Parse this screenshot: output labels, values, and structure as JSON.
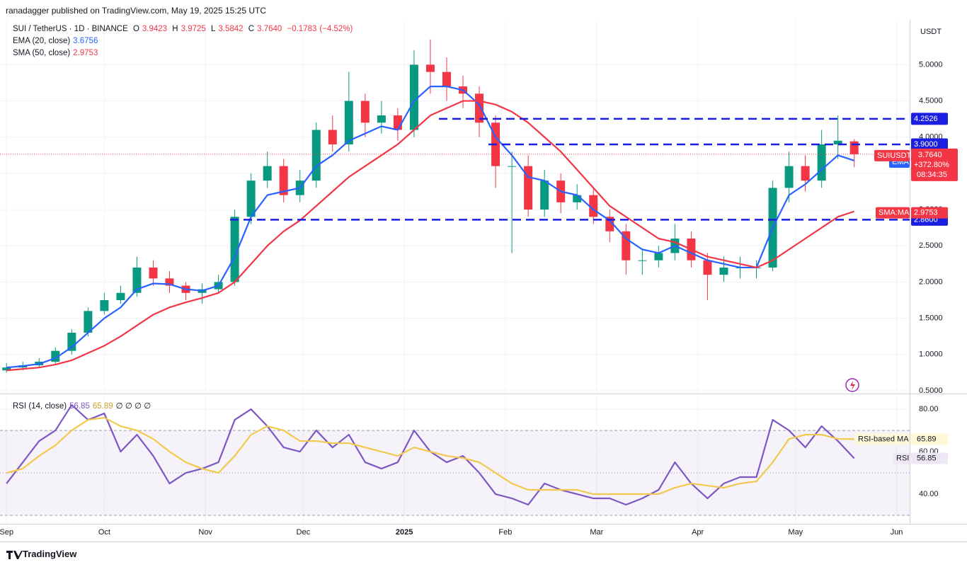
{
  "header": {
    "publisher": "ranadagger published on TradingView.com, May 19, 2025 15:25 UTC",
    "brand": "TradingView"
  },
  "chart_data": [
    {
      "type": "candlestick",
      "title": "SUI / TetherUS · 1D · BINANCE",
      "legend": {
        "open_label": "O",
        "open": 3.9423,
        "high_label": "H",
        "high": 3.9725,
        "low_label": "L",
        "low": 3.5842,
        "close_label": "C",
        "close": {
          "value": 3.764,
          "label": "3.7640"
        },
        "change": {
          "value": -0.1783,
          "label": "−0.1783"
        },
        "change_pct": {
          "value": -4.52,
          "label": "(−4.52%)"
        }
      },
      "currency": "USDT",
      "x": [
        0,
        5,
        10,
        15,
        20,
        25,
        30,
        35,
        40,
        45,
        50,
        55,
        60,
        65,
        70,
        75,
        80,
        85,
        90,
        95,
        100,
        105,
        110,
        115,
        120,
        125,
        130,
        135,
        140,
        145,
        150,
        155,
        160,
        165,
        170,
        175,
        180,
        185,
        190,
        195,
        200,
        205,
        210,
        215,
        220,
        225,
        230,
        235,
        240,
        245,
        250,
        255,
        260
      ],
      "open": [
        0.78,
        0.82,
        0.85,
        0.9,
        1.05,
        1.3,
        1.6,
        1.75,
        1.85,
        2.2,
        2.05,
        1.95,
        1.85,
        1.9,
        2.0,
        2.9,
        3.4,
        3.6,
        3.2,
        3.4,
        4.1,
        3.9,
        4.5,
        4.2,
        4.3,
        4.1,
        5.0,
        4.9,
        4.7,
        4.6,
        4.2,
        3.6,
        3.6,
        3.0,
        3.4,
        3.1,
        3.2,
        2.9,
        2.7,
        2.3,
        2.3,
        2.4,
        2.6,
        2.3,
        2.1,
        2.2,
        2.2,
        2.2,
        3.3,
        3.6,
        3.4,
        3.9,
        3.9423
      ],
      "high": [
        0.88,
        0.9,
        0.95,
        1.1,
        1.35,
        1.65,
        1.85,
        1.95,
        2.35,
        2.3,
        2.15,
        2.0,
        1.98,
        2.1,
        3.0,
        3.5,
        3.8,
        3.7,
        3.55,
        4.2,
        4.3,
        4.9,
        4.6,
        4.5,
        4.4,
        5.2,
        5.35,
        5.1,
        4.85,
        4.7,
        4.3,
        3.8,
        3.75,
        3.55,
        3.5,
        3.35,
        3.3,
        3.0,
        2.8,
        2.45,
        2.5,
        2.8,
        2.7,
        2.4,
        2.35,
        2.35,
        2.3,
        3.4,
        3.8,
        3.75,
        4.1,
        4.3,
        3.9725
      ],
      "low": [
        0.75,
        0.78,
        0.82,
        0.86,
        1.0,
        1.25,
        1.55,
        1.7,
        1.8,
        1.95,
        1.85,
        1.75,
        1.7,
        1.85,
        1.95,
        2.8,
        3.3,
        3.1,
        3.1,
        3.3,
        3.8,
        3.8,
        4.0,
        4.05,
        3.95,
        4.0,
        4.6,
        4.5,
        4.4,
        4.0,
        3.3,
        2.4,
        2.9,
        2.9,
        2.95,
        3.0,
        2.8,
        2.55,
        2.1,
        2.1,
        2.2,
        2.3,
        2.2,
        1.75,
        2.0,
        2.05,
        2.05,
        2.15,
        3.1,
        3.25,
        3.3,
        3.7,
        3.5842
      ],
      "close": [
        0.82,
        0.85,
        0.9,
        1.05,
        1.3,
        1.6,
        1.75,
        1.85,
        2.2,
        2.05,
        1.95,
        1.85,
        1.9,
        2.0,
        2.9,
        3.4,
        3.6,
        3.2,
        3.4,
        4.1,
        3.9,
        4.5,
        4.2,
        4.3,
        4.1,
        5.0,
        4.9,
        4.7,
        4.6,
        4.2,
        3.6,
        3.6,
        3.0,
        3.4,
        3.1,
        3.2,
        2.9,
        2.7,
        2.3,
        2.3,
        2.4,
        2.6,
        2.3,
        2.1,
        2.2,
        2.2,
        2.2,
        3.3,
        3.6,
        3.4,
        3.9,
        3.95,
        3.764
      ],
      "up_color": "#089981",
      "down_color": "#f23645",
      "series": [
        {
          "name": "EMA (20, close)",
          "tag": "EMA",
          "color": "#2962ff",
          "values": [
            0.82,
            0.84,
            0.87,
            0.95,
            1.1,
            1.3,
            1.5,
            1.65,
            1.9,
            1.98,
            1.97,
            1.9,
            1.88,
            1.95,
            2.35,
            2.9,
            3.2,
            3.25,
            3.3,
            3.6,
            3.75,
            3.95,
            4.05,
            4.15,
            4.1,
            4.5,
            4.7,
            4.7,
            4.65,
            4.45,
            4.0,
            3.75,
            3.45,
            3.4,
            3.25,
            3.2,
            3.0,
            2.85,
            2.6,
            2.45,
            2.4,
            2.5,
            2.4,
            2.3,
            2.25,
            2.2,
            2.2,
            2.75,
            3.2,
            3.35,
            3.55,
            3.75,
            3.6756
          ]
        },
        {
          "name": "SMA (50, close)",
          "tag": "SMA:MA",
          "color": "#f23645",
          "values": [
            0.78,
            0.8,
            0.82,
            0.86,
            0.92,
            1.02,
            1.12,
            1.25,
            1.4,
            1.55,
            1.65,
            1.72,
            1.78,
            1.85,
            2.0,
            2.25,
            2.5,
            2.7,
            2.85,
            3.05,
            3.25,
            3.45,
            3.6,
            3.75,
            3.9,
            4.1,
            4.3,
            4.4,
            4.5,
            4.5,
            4.45,
            4.35,
            4.2,
            4.0,
            3.8,
            3.55,
            3.3,
            3.05,
            2.9,
            2.75,
            2.6,
            2.55,
            2.45,
            2.35,
            2.3,
            2.25,
            2.2,
            2.3,
            2.45,
            2.6,
            2.75,
            2.9,
            2.9753
          ]
        }
      ],
      "levels": [
        {
          "value": 4.2526,
          "label": "4.2526"
        },
        {
          "value": 3.9,
          "label": "3.9000"
        },
        {
          "value": 2.86,
          "label": "2.8600"
        }
      ],
      "level_color": "#1a1ee0",
      "price_tag": {
        "symbol": "SUIUSDT",
        "price": {
          "value": 3.764,
          "label": "3.7640"
        },
        "change_pct": {
          "value": 372.8,
          "label": "+372.80%"
        },
        "countdown": "08:34:35"
      },
      "xlim": [
        -2,
        277
      ],
      "ylim": [
        0.47,
        5.6
      ],
      "yticks": [
        {
          "value": 0.5,
          "label": "0.5000"
        },
        {
          "value": 1.0,
          "label": "1.0000"
        },
        {
          "value": 1.5,
          "label": "1.5000"
        },
        {
          "value": 2.0,
          "label": "2.0000"
        },
        {
          "value": 2.5,
          "label": "2.5000"
        },
        {
          "value": 3.0,
          "label": "3.0000"
        },
        {
          "value": 3.5,
          "label": "3.5000"
        },
        {
          "value": 4.0,
          "label": "4.0000"
        },
        {
          "value": 4.5,
          "label": "4.5000"
        },
        {
          "value": 5.0,
          "label": "5.0000"
        }
      ],
      "grid": true
    },
    {
      "type": "line",
      "title": "RSI (14, close)",
      "legend_extra": "∅ ∅ ∅ ∅",
      "series": [
        {
          "name": "RSI",
          "color": "#7e57c2",
          "values": [
            45,
            55,
            65,
            70,
            82,
            75,
            78,
            60,
            68,
            58,
            45,
            50,
            52,
            55,
            75,
            80,
            72,
            62,
            60,
            70,
            62,
            68,
            55,
            52,
            55,
            70,
            60,
            55,
            58,
            50,
            40,
            38,
            35,
            45,
            42,
            40,
            38,
            38,
            35,
            38,
            42,
            55,
            45,
            38,
            45,
            48,
            48,
            75,
            70,
            62,
            72,
            65,
            56.85
          ]
        },
        {
          "name": "RSI-based MA",
          "color": "#f2c94c",
          "values": [
            50,
            52,
            58,
            63,
            70,
            75,
            76,
            72,
            70,
            66,
            60,
            55,
            52,
            50,
            58,
            68,
            72,
            70,
            65,
            65,
            64,
            64,
            62,
            60,
            58,
            62,
            60,
            58,
            57,
            55,
            50,
            45,
            42,
            42,
            42,
            42,
            40,
            40,
            40,
            40,
            40,
            43,
            45,
            44,
            43,
            45,
            46,
            55,
            66,
            68,
            68,
            66,
            65.89
          ]
        }
      ],
      "bands": [
        70,
        50,
        30
      ],
      "ylim": [
        26,
        86.7
      ],
      "yticks": [
        {
          "value": 80,
          "label": "80.00"
        },
        {
          "value": 60,
          "label": "60.00"
        },
        {
          "value": 40,
          "label": "40.00"
        }
      ],
      "xlim": [
        -2,
        277
      ],
      "xticks": [
        {
          "value": 0,
          "label": "Sep"
        },
        {
          "value": 30,
          "label": "Oct"
        },
        {
          "value": 61,
          "label": "Nov"
        },
        {
          "value": 91,
          "label": "Dec"
        },
        {
          "value": 122,
          "label": "2025"
        },
        {
          "value": 153,
          "label": "Feb"
        },
        {
          "value": 181,
          "label": "Mar"
        },
        {
          "value": 212,
          "label": "Apr"
        },
        {
          "value": 242,
          "label": "May"
        },
        {
          "value": 273,
          "label": "Jun"
        }
      ],
      "grid": true
    }
  ]
}
